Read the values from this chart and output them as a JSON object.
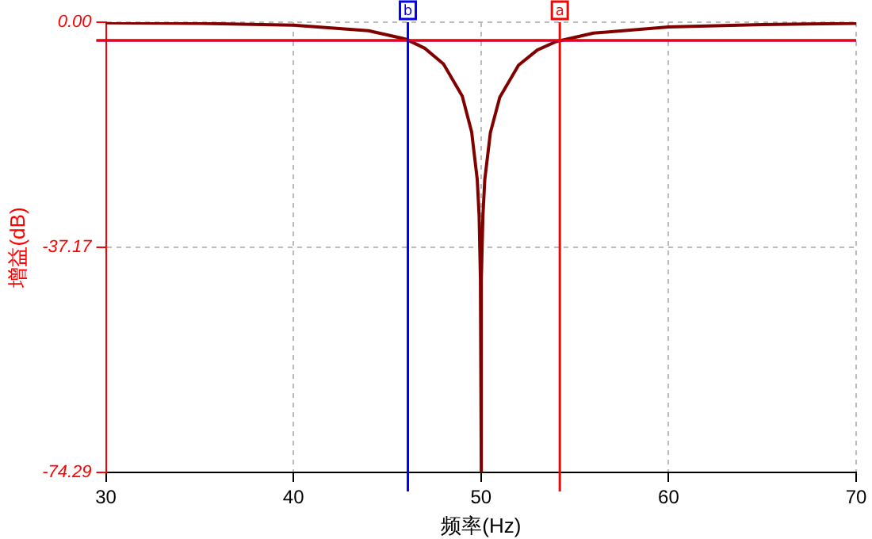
{
  "chart_data": {
    "type": "line",
    "xlabel": "频率(Hz)",
    "ylabel": "增益(dB)",
    "xlim": [
      30,
      70
    ],
    "xticks": [
      30,
      40,
      50,
      60,
      70
    ],
    "ylim": [
      -74.29,
      0
    ],
    "yticks": [
      {
        "value": -74.29,
        "label": "-74.29"
      },
      {
        "value": -37.17,
        "label": "-37.17"
      },
      {
        "value": 0,
        "label": "0.00"
      }
    ],
    "grid": true,
    "legend": false,
    "marker": "none",
    "line_style": "solid",
    "series": [
      {
        "color": "#800000",
        "x": [
          30,
          35,
          40,
          44,
          46,
          47,
          48,
          49,
          49.5,
          49.8,
          49.9,
          49.97,
          50,
          50.03,
          50.1,
          50.2,
          50.5,
          51,
          52,
          53,
          54,
          56,
          60,
          65,
          70
        ],
        "values": [
          -0.1,
          -0.2,
          -0.5,
          -1.4,
          -2.8,
          -4.3,
          -6.9,
          -12.2,
          -18.1,
          -26,
          -32,
          -42.5,
          -74.29,
          -42.5,
          -32,
          -26,
          -18.2,
          -12.4,
          -7.1,
          -4.6,
          -3.2,
          -1.8,
          -0.8,
          -0.4,
          -0.2
        ]
      }
    ],
    "ref_lines": [
      {
        "axis": "y",
        "value": -3,
        "color": "#0000ff"
      },
      {
        "axis": "y",
        "value": -3,
        "color": "#ff0000"
      },
      {
        "axis": "x",
        "value": 46.1,
        "label": "b",
        "color": "#0000ff"
      },
      {
        "axis": "x",
        "value": 54.2,
        "label": "a",
        "color": "#ff0000"
      }
    ]
  }
}
